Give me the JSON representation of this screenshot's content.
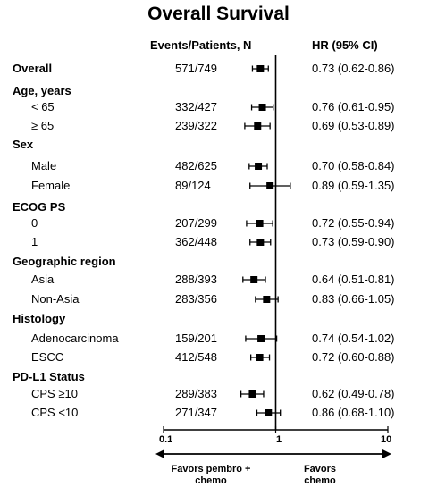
{
  "title": "Overall Survival",
  "headers": {
    "events": "Events/Patients, N",
    "hr": "HR (95%  CI)"
  },
  "favors": {
    "left_line1": "Favors pembro +",
    "left_line2": "chemo",
    "right_line1": "Favors",
    "right_line2": "chemo"
  },
  "chart_data": {
    "type": "forest",
    "title": "Overall Survival",
    "xscale": "log",
    "xlim": [
      0.1,
      10
    ],
    "reference_line": 1,
    "x_ticks": [
      "0.1",
      "1",
      "10"
    ],
    "rows": [
      {
        "kind": "overall",
        "label": "Overall",
        "events": "571/749",
        "hr": 0.73,
        "lo": 0.62,
        "hi": 0.86,
        "hr_text": "0.73 (0.62-0.86)"
      },
      {
        "kind": "group",
        "label": "Age, years"
      },
      {
        "kind": "sub",
        "label": "< 65",
        "events": "332/427",
        "hr": 0.76,
        "lo": 0.61,
        "hi": 0.95,
        "hr_text": "0.76 (0.61-0.95)"
      },
      {
        "kind": "sub",
        "label": "≥ 65",
        "events": "239/322",
        "hr": 0.69,
        "lo": 0.53,
        "hi": 0.89,
        "hr_text": "0.69 (0.53-0.89)"
      },
      {
        "kind": "group",
        "label": "Sex"
      },
      {
        "kind": "sub",
        "label": "Male",
        "events": "482/625",
        "hr": 0.7,
        "lo": 0.58,
        "hi": 0.84,
        "hr_text": "0.70 (0.58-0.84)"
      },
      {
        "kind": "sub",
        "label": "Female",
        "events": "89/124",
        "hr": 0.89,
        "lo": 0.59,
        "hi": 1.35,
        "hr_text": "0.89 (0.59-1.35)"
      },
      {
        "kind": "group",
        "label": "ECOG PS"
      },
      {
        "kind": "sub",
        "label": "0",
        "events": "207/299",
        "hr": 0.72,
        "lo": 0.55,
        "hi": 0.94,
        "hr_text": "0.72 (0.55-0.94)"
      },
      {
        "kind": "sub",
        "label": "1",
        "events": "362/448",
        "hr": 0.73,
        "lo": 0.59,
        "hi": 0.9,
        "hr_text": "0.73  (0.59-0.90)"
      },
      {
        "kind": "group",
        "label": "Geographic region"
      },
      {
        "kind": "sub",
        "label": "Asia",
        "events": "288/393",
        "hr": 0.64,
        "lo": 0.51,
        "hi": 0.81,
        "hr_text": "0.64  (0.51-0.81)"
      },
      {
        "kind": "sub",
        "label": "Non-Asia",
        "events": "283/356",
        "hr": 0.83,
        "lo": 0.66,
        "hi": 1.05,
        "hr_text": "0.83  (0.66-1.05)"
      },
      {
        "kind": "group",
        "label": "Histology"
      },
      {
        "kind": "sub",
        "label": "Adenocarcinoma",
        "events": "159/201",
        "hr": 0.74,
        "lo": 0.54,
        "hi": 1.02,
        "hr_text": "0.74  (0.54-1.02)"
      },
      {
        "kind": "sub",
        "label": "ESCC",
        "events": "412/548",
        "hr": 0.72,
        "lo": 0.6,
        "hi": 0.88,
        "hr_text": "0.72  (0.60-0.88)"
      },
      {
        "kind": "group",
        "label": "PD-L1 Status"
      },
      {
        "kind": "sub",
        "label": "CPS ≥10",
        "events": "289/383",
        "hr": 0.62,
        "lo": 0.49,
        "hi": 0.78,
        "hr_text": "0.62  (0.49-0.78)"
      },
      {
        "kind": "sub",
        "label": "CPS <10",
        "events": "271/347",
        "hr": 0.86,
        "lo": 0.68,
        "hi": 1.1,
        "hr_text": "0.86  (0.68-1.10)"
      }
    ]
  }
}
